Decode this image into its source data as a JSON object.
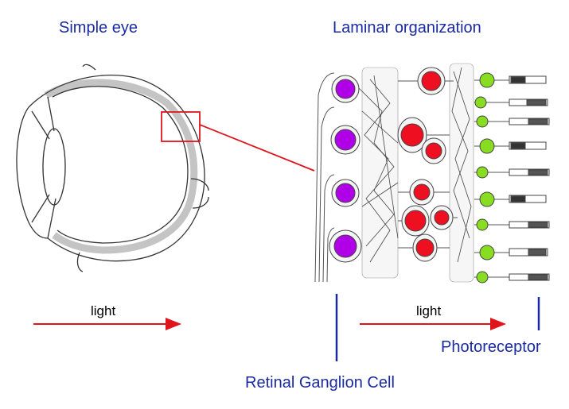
{
  "titles": {
    "left": "Simple eye",
    "right": "Laminar organization"
  },
  "labels": {
    "light_left": "light",
    "light_right": "light",
    "photoreceptor": "Photoreceptor",
    "ganglion": "Retinal Ganglion Cell"
  },
  "colors": {
    "title_blue": "#1a2aa0",
    "arrow_red": "#e0151c",
    "ganglion_purple": "#b000e8",
    "bipolar_red": "#ee1020",
    "photoreceptor_green": "#88dd22",
    "line_blue": "#1a2aa0"
  }
}
